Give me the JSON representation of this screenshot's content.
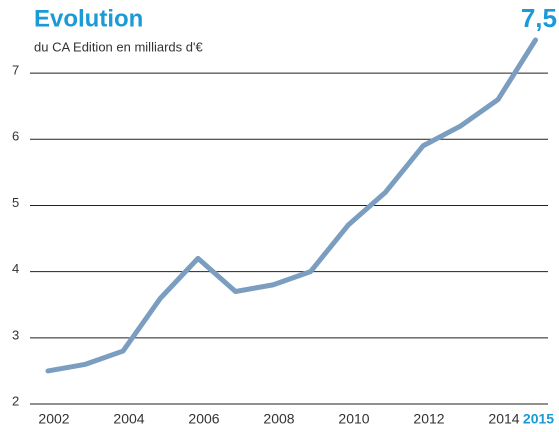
{
  "chart_data": {
    "type": "line",
    "title": "Evolution",
    "subtitle": "du CA Edition en milliards d'€",
    "categories": [
      "2002",
      null,
      "2004",
      null,
      "2006",
      null,
      "2008",
      null,
      "2010",
      null,
      "2012",
      null,
      "2014",
      "2015"
    ],
    "series": [
      {
        "name": "CA Edition",
        "color": "#7b9ec0",
        "values": [
          2.5,
          2.6,
          2.8,
          3.6,
          4.2,
          3.7,
          3.8,
          4.0,
          4.7,
          5.2,
          5.9,
          6.2,
          6.6,
          7.5
        ],
        "value_labels": [
          null,
          null,
          null,
          null,
          null,
          null,
          null,
          null,
          null,
          null,
          null,
          null,
          null,
          "7,5"
        ]
      }
    ],
    "ylim": [
      2,
      7.5
    ],
    "yticks": [
      2,
      3,
      4,
      5,
      6,
      7
    ],
    "grid": true,
    "highlight_color": "#1a9ad6"
  }
}
